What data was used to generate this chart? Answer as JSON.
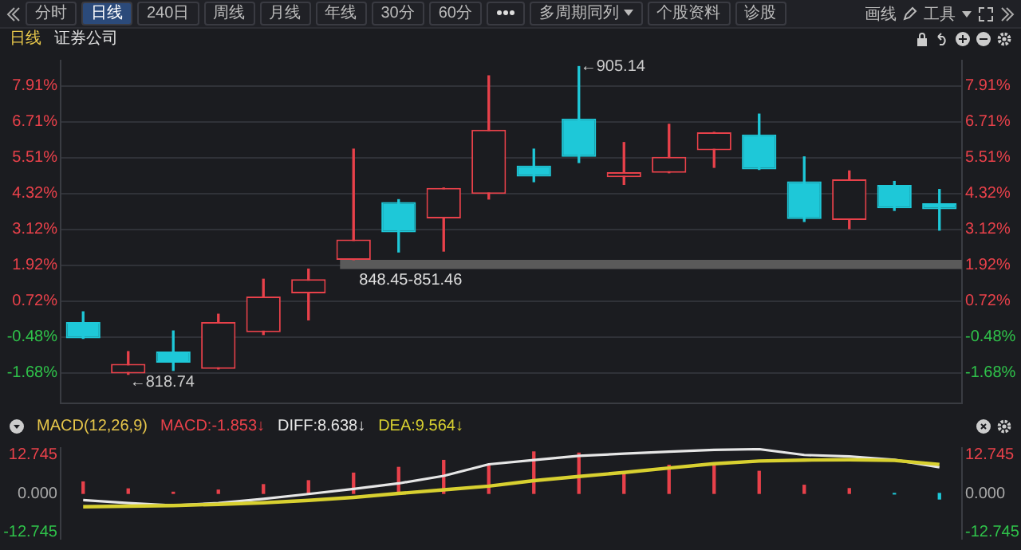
{
  "chart_data": [
    {
      "type": "other",
      "annotations": [
        "分时",
        "日线",
        "240日",
        "周线",
        "月线",
        "年线",
        "30分",
        "60分",
        "多周期同列",
        "个股资料",
        "诊股",
        "画线",
        "工具"
      ]
    },
    {
      "type": "candlestick",
      "title": "日线",
      "subtitle": "证券公司",
      "categories": [
        null,
        null,
        null,
        null,
        null,
        null,
        null,
        null,
        null,
        null,
        null,
        null,
        null,
        null,
        null,
        null,
        null,
        null,
        null,
        null
      ],
      "ohlc": [
        [
          0.02,
          0.36,
          -0.53,
          -0.53
        ],
        [
          -1.7,
          -0.97,
          -1.73,
          -1.38
        ],
        [
          -0.97,
          -0.28,
          -1.6,
          -1.34
        ],
        [
          -1.55,
          0.28,
          -1.55,
          0.02
        ],
        [
          -0.32,
          1.45,
          -0.4,
          0.87
        ],
        [
          0.98,
          1.79,
          0.09,
          1.45
        ],
        [
          2.1,
          5.8,
          2.1,
          2.78
        ],
        [
          4.03,
          4.11,
          2.36,
          3.02
        ],
        [
          3.48,
          4.5,
          2.39,
          4.5
        ],
        [
          4.3,
          8.25,
          4.13,
          6.45
        ],
        [
          5.25,
          5.8,
          4.71,
          4.88
        ],
        [
          6.82,
          8.56,
          5.35,
          5.54
        ],
        [
          4.86,
          6.02,
          4.62,
          5.03
        ],
        [
          5.01,
          6.63,
          5.01,
          5.54
        ],
        [
          5.76,
          6.36,
          5.19,
          6.36
        ],
        [
          6.29,
          6.97,
          5.12,
          5.12
        ],
        [
          4.72,
          5.54,
          3.38,
          3.46
        ],
        [
          3.43,
          5.07,
          3.14,
          4.79
        ],
        [
          4.6,
          4.72,
          3.75,
          3.82
        ],
        [
          3.99,
          4.45,
          3.09,
          3.79
        ]
      ],
      "colors": [
        "#1ec8d8",
        "#e8414a",
        "#1ec8d8",
        "#e8414a",
        "#e8414a",
        "#e8414a",
        "#e8414a",
        "#1ec8d8",
        "#e8414a",
        "#e8414a",
        "#1ec8d8",
        "#1ec8d8",
        "#e8414a",
        "#e8414a",
        "#e8414a",
        "#1ec8d8",
        "#1ec8d8",
        "#e8414a",
        "#1ec8d8",
        "#1ec8d8"
      ],
      "ylim": [
        -2.7,
        8.76
      ],
      "yticks": [
        {
          "value": 7.91,
          "label": "7.91%"
        },
        {
          "value": 6.71,
          "label": "6.71%"
        },
        {
          "value": 5.51,
          "label": "5.51%"
        },
        {
          "value": 4.32,
          "label": "4.32%"
        },
        {
          "value": 3.12,
          "label": "3.12%"
        },
        {
          "value": 1.92,
          "label": "1.92%"
        },
        {
          "value": 0.72,
          "label": "0.72%"
        },
        {
          "value": -0.48,
          "label": "-0.48%"
        },
        {
          "value": -1.68,
          "label": "-1.68%"
        }
      ],
      "y2lim": [
        -2.7,
        8.76
      ],
      "y2ticks": [
        {
          "value": 7.91,
          "label": "7.91%"
        },
        {
          "value": 6.71,
          "label": "6.71%"
        },
        {
          "value": 5.51,
          "label": "5.51%"
        },
        {
          "value": 4.32,
          "label": "4.32%"
        },
        {
          "value": 3.12,
          "label": "3.12%"
        },
        {
          "value": 1.92,
          "label": "1.92%"
        },
        {
          "value": 0.72,
          "label": "0.72%"
        },
        {
          "value": -0.48,
          "label": "-0.48%"
        },
        {
          "value": -1.68,
          "label": "-1.68%"
        }
      ],
      "grid": "y",
      "bands": [
        {
          "axis": "y",
          "from": 1.79,
          "to": 2.1,
          "label": "848.45-851.46",
          "color": "#5a5a5a"
        }
      ],
      "annotations": [
        "←905.14",
        "←818.74"
      ]
    },
    {
      "type": "bar",
      "title": "MACD(12,26,9)",
      "categories": [
        null,
        null,
        null,
        null,
        null,
        null,
        null,
        null,
        null,
        null,
        null,
        null,
        null,
        null,
        null,
        null,
        null,
        null,
        null,
        null
      ],
      "series": [
        {
          "name": "MACD:-1.853↓",
          "type": "bar",
          "color": "#e8414a",
          "colors": [
            "#e8414a",
            "#e8414a",
            "#e8414a",
            "#e8414a",
            "#e8414a",
            "#e8414a",
            "#e8414a",
            "#e8414a",
            "#e8414a",
            "#e8414a",
            "#e8414a",
            "#e8414a",
            "#e8414a",
            "#e8414a",
            "#e8414a",
            "#e8414a",
            "#e8414a",
            "#e8414a",
            "#1ec8d8",
            "#1ec8d8"
          ],
          "values": [
            3.8,
            1.5,
            0.4,
            1.1,
            2.9,
            4.2,
            6.7,
            8.6,
            10.9,
            9.3,
            13.7,
            13.3,
            6.5,
            9.3,
            9.6,
            7.3,
            2.7,
            1.6,
            -0.2,
            -1.853
          ]
        },
        {
          "name": "DIFF:8.638↓",
          "type": "line",
          "color": "#e6e6e6",
          "values": [
            -2.2,
            -3.2,
            -4.0,
            -3.2,
            -1.8,
            -0.2,
            1.5,
            3.3,
            5.8,
            9.6,
            11.0,
            12.4,
            13.1,
            13.8,
            14.4,
            14.6,
            12.7,
            12.2,
            11.1,
            8.638
          ]
        },
        {
          "name": "DEA:9.564↓",
          "type": "line",
          "color": "#d8d030",
          "values": [
            -4.4,
            -4.2,
            -4.0,
            -3.6,
            -3.1,
            -2.3,
            -1.3,
            0,
            1.2,
            2.4,
            4.2,
            5.6,
            6.9,
            8.4,
            9.8,
            10.7,
            11.0,
            11.1,
            10.9,
            9.564
          ]
        }
      ],
      "ylim": [
        -15,
        15
      ],
      "yticks": [
        12.745,
        {
          "value": 0,
          "label": "0.000"
        },
        -12.745
      ],
      "y2lim": [
        -15,
        15
      ],
      "y2ticks": [
        12.745,
        {
          "value": 0,
          "label": "0.000"
        },
        -12.745
      ],
      "legend": "top left",
      "marker": "none"
    }
  ]
}
